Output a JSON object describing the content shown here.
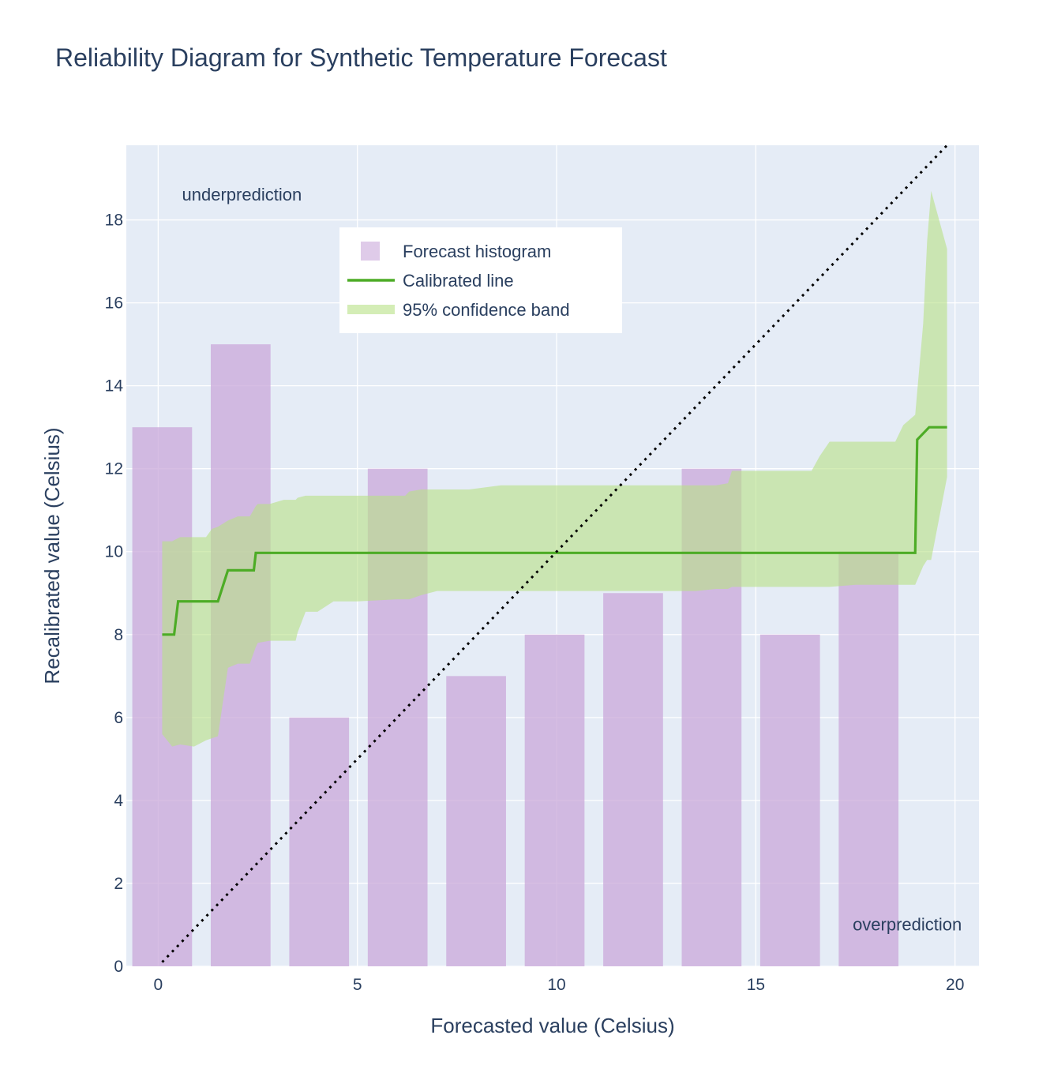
{
  "chart_data": {
    "type": "line",
    "title": "Reliability Diagram for Synthetic Temperature Forecast",
    "xlabel": "Forecasted value (Celsius)",
    "ylabel": "Recalibrated value (Celsius)",
    "xlim": [
      -0.8,
      20.6
    ],
    "ylim": [
      0,
      19.8
    ],
    "x_ticks": [
      0,
      5,
      10,
      15,
      20
    ],
    "y_ticks": [
      0,
      2,
      4,
      6,
      8,
      10,
      12,
      14,
      16,
      18
    ],
    "grid": true,
    "legend_position": "top-center",
    "annotations": [
      {
        "text": "underprediction",
        "x": 2.1,
        "y": 18.6
      },
      {
        "text": "overprediction",
        "x": 18.8,
        "y": 1.0
      }
    ],
    "colors": {
      "plot_background": "#e5ecf6",
      "grid": "#ffffff",
      "histogram": "#c9a8da",
      "calibrated_line": "#4dac26",
      "confidence_band": "#b8e186",
      "diagonal": "#000000",
      "text": "#2a3f5f"
    },
    "legend": [
      {
        "label": "Forecast histogram",
        "kind": "bar"
      },
      {
        "label": "Calibrated line",
        "kind": "line"
      },
      {
        "label": "95% confidence band",
        "kind": "band"
      }
    ],
    "histogram": {
      "name": "Forecast histogram",
      "centers": [
        0.1,
        2.07,
        4.04,
        6.01,
        7.98,
        9.95,
        11.92,
        13.89,
        15.86,
        17.83
      ],
      "width": 1.5,
      "values": [
        13,
        15,
        6,
        12,
        7,
        8,
        9,
        12,
        8,
        10
      ]
    },
    "calibrated_line": {
      "name": "Calibrated line",
      "x": [
        0.1,
        0.4,
        0.5,
        1.5,
        1.75,
        2.4,
        2.45,
        19.0,
        19.05,
        19.35,
        19.8
      ],
      "y": [
        8.0,
        8.0,
        8.8,
        8.8,
        9.55,
        9.55,
        9.97,
        9.97,
        12.7,
        13.0,
        13.0
      ]
    },
    "confidence_band": {
      "name": "95% confidence band",
      "x": [
        0.1,
        0.35,
        0.55,
        0.9,
        1.2,
        1.35,
        1.5,
        1.75,
        2.0,
        2.3,
        2.45,
        2.5,
        2.8,
        3.15,
        3.45,
        3.5,
        3.7,
        4.0,
        4.4,
        5.0,
        6.0,
        6.2,
        6.3,
        6.6,
        7.0,
        7.8,
        8.6,
        9.5,
        10.5,
        11.5,
        12.5,
        13.5,
        14.0,
        14.3,
        14.4,
        15.0,
        16.0,
        16.4,
        16.6,
        16.85,
        17.5,
        18.2,
        18.5,
        18.7,
        19.0,
        19.2,
        19.3,
        19.4,
        19.8
      ],
      "upper": [
        10.25,
        10.25,
        10.35,
        10.35,
        10.35,
        10.55,
        10.6,
        10.75,
        10.85,
        10.85,
        11.1,
        11.15,
        11.15,
        11.25,
        11.25,
        11.3,
        11.35,
        11.35,
        11.35,
        11.35,
        11.35,
        11.35,
        11.45,
        11.5,
        11.5,
        11.5,
        11.6,
        11.6,
        11.6,
        11.6,
        11.6,
        11.6,
        11.6,
        11.65,
        11.95,
        11.95,
        11.95,
        11.95,
        12.3,
        12.65,
        12.65,
        12.65,
        12.65,
        13.05,
        13.3,
        15.5,
        17.5,
        18.7,
        17.3
      ],
      "lower": [
        5.6,
        5.3,
        5.35,
        5.3,
        5.45,
        5.5,
        5.55,
        7.2,
        7.3,
        7.3,
        7.7,
        7.8,
        7.85,
        7.85,
        7.85,
        8.05,
        8.55,
        8.55,
        8.8,
        8.8,
        8.85,
        8.85,
        8.85,
        8.95,
        9.05,
        9.05,
        9.05,
        9.05,
        9.05,
        9.05,
        9.05,
        9.05,
        9.1,
        9.1,
        9.15,
        9.15,
        9.15,
        9.15,
        9.15,
        9.15,
        9.2,
        9.2,
        9.2,
        9.2,
        9.2,
        9.65,
        9.8,
        9.8,
        11.8
      ]
    },
    "diagonal": {
      "x": [
        0.1,
        19.8
      ],
      "y": [
        0.1,
        19.8
      ]
    }
  }
}
